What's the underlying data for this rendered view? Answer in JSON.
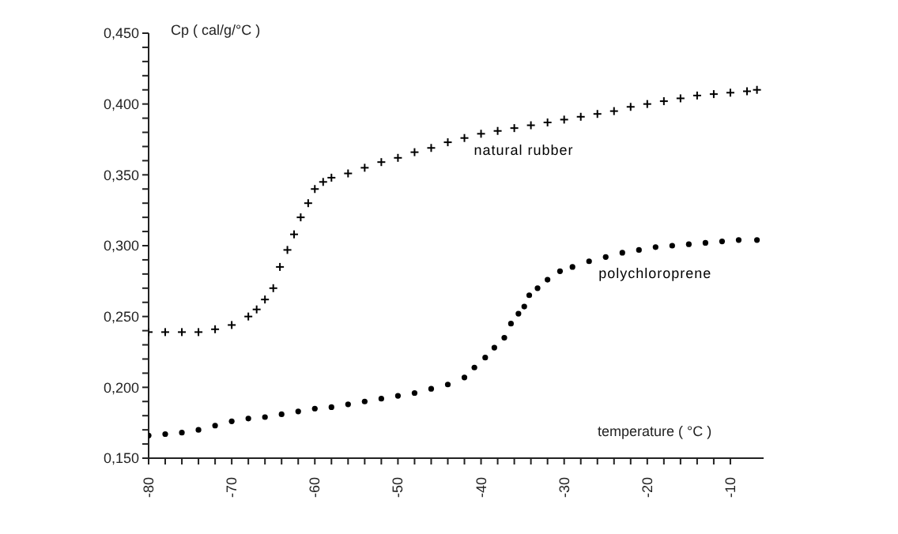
{
  "chart_data": {
    "type": "scatter",
    "xlabel": "temperature ( °C )",
    "ylabel": "Cp ( cal/g/°C )",
    "xlim": [
      -80,
      -6
    ],
    "xticks": [
      -80,
      {
        "value": -78,
        "label": null
      },
      {
        "value": -76,
        "label": null
      },
      {
        "value": -74,
        "label": null
      },
      {
        "value": -72,
        "label": null
      },
      -70,
      {
        "value": -68,
        "label": null
      },
      {
        "value": -66,
        "label": null
      },
      {
        "value": -64,
        "label": null
      },
      {
        "value": -62,
        "label": null
      },
      -60,
      {
        "value": -58,
        "label": null
      },
      {
        "value": -56,
        "label": null
      },
      {
        "value": -54,
        "label": null
      },
      {
        "value": -52,
        "label": null
      },
      -50,
      {
        "value": -48,
        "label": null
      },
      {
        "value": -46,
        "label": null
      },
      {
        "value": -44,
        "label": null
      },
      {
        "value": -42,
        "label": null
      },
      -40,
      {
        "value": -38,
        "label": null
      },
      {
        "value": -36,
        "label": null
      },
      {
        "value": -34,
        "label": null
      },
      {
        "value": -32,
        "label": null
      },
      -30,
      {
        "value": -28,
        "label": null
      },
      {
        "value": -26,
        "label": null
      },
      {
        "value": -24,
        "label": null
      },
      {
        "value": -22,
        "label": null
      },
      -20,
      {
        "value": -18,
        "label": null
      },
      {
        "value": -16,
        "label": null
      },
      {
        "value": -14,
        "label": null
      },
      {
        "value": -12,
        "label": null
      },
      -10
    ],
    "ylim": [
      0.15,
      0.45
    ],
    "yticks": [
      {
        "value": 0.15,
        "label": "0,150"
      },
      {
        "value": 0.16,
        "label": null
      },
      {
        "value": 0.17,
        "label": null
      },
      {
        "value": 0.18,
        "label": null
      },
      {
        "value": 0.19,
        "label": null
      },
      {
        "value": 0.2,
        "label": "0,200"
      },
      {
        "value": 0.21,
        "label": null
      },
      {
        "value": 0.22,
        "label": null
      },
      {
        "value": 0.23,
        "label": null
      },
      {
        "value": 0.24,
        "label": null
      },
      {
        "value": 0.25,
        "label": "0,250"
      },
      {
        "value": 0.26,
        "label": null
      },
      {
        "value": 0.27,
        "label": null
      },
      {
        "value": 0.28,
        "label": null
      },
      {
        "value": 0.29,
        "label": null
      },
      {
        "value": 0.3,
        "label": "0,300"
      },
      {
        "value": 0.31,
        "label": null
      },
      {
        "value": 0.32,
        "label": null
      },
      {
        "value": 0.33,
        "label": null
      },
      {
        "value": 0.34,
        "label": null
      },
      {
        "value": 0.35,
        "label": "0,350"
      },
      {
        "value": 0.36,
        "label": null
      },
      {
        "value": 0.37,
        "label": null
      },
      {
        "value": 0.38,
        "label": null
      },
      {
        "value": 0.39,
        "label": null
      },
      {
        "value": 0.4,
        "label": "0,400"
      },
      {
        "value": 0.41,
        "label": null
      },
      {
        "value": 0.42,
        "label": null
      },
      {
        "value": 0.43,
        "label": null
      },
      {
        "value": 0.44,
        "label": null
      },
      {
        "value": 0.45,
        "label": "0,450"
      }
    ],
    "grid": false,
    "series": [
      {
        "name": "natural rubber",
        "color": "#000000",
        "marker": "cross",
        "x": [
          -80,
          -78,
          -76,
          -74,
          -72,
          -70,
          -68,
          -67,
          -66,
          -65,
          -64.2,
          -63.3,
          -62.5,
          -61.7,
          -60.8,
          -60,
          -59,
          -58,
          -56,
          -54,
          -52,
          -50,
          -48,
          -46,
          -44,
          -42,
          -40,
          -38,
          -36,
          -34,
          -32,
          -30,
          -28,
          -26,
          -24,
          -22,
          -20,
          -18,
          -16,
          -14,
          -12,
          -10,
          -8,
          -6.8
        ],
        "values": [
          0.239,
          0.239,
          0.239,
          0.239,
          0.241,
          0.244,
          0.25,
          0.255,
          0.262,
          0.27,
          0.285,
          0.297,
          0.308,
          0.32,
          0.33,
          0.34,
          0.345,
          0.348,
          0.351,
          0.355,
          0.359,
          0.362,
          0.366,
          0.369,
          0.373,
          0.376,
          0.379,
          0.381,
          0.383,
          0.385,
          0.387,
          0.389,
          0.391,
          0.393,
          0.395,
          0.398,
          0.4,
          0.402,
          0.404,
          0.406,
          0.407,
          0.408,
          0.409,
          0.41
        ]
      },
      {
        "name": "polychloroprene",
        "color": "#000000",
        "marker": "circle",
        "x": [
          -80,
          -78,
          -76,
          -74,
          -72,
          -70,
          -68,
          -66,
          -64,
          -62,
          -60,
          -58,
          -56,
          -54,
          -52,
          -50,
          -48,
          -46,
          -44,
          -42,
          -40.8,
          -39.5,
          -38.4,
          -37.2,
          -36.4,
          -35.5,
          -34.8,
          -34.2,
          -33.2,
          -32,
          -30.5,
          -29,
          -27,
          -25,
          -23,
          -21,
          -19,
          -17,
          -15,
          -13,
          -11,
          -9,
          -6.8
        ],
        "values": [
          0.166,
          0.167,
          0.168,
          0.17,
          0.173,
          0.176,
          0.178,
          0.179,
          0.181,
          0.183,
          0.185,
          0.186,
          0.188,
          0.19,
          0.192,
          0.194,
          0.196,
          0.199,
          0.202,
          0.207,
          0.214,
          0.221,
          0.228,
          0.235,
          0.245,
          0.252,
          0.257,
          0.265,
          0.27,
          0.276,
          0.282,
          0.285,
          0.289,
          0.292,
          0.295,
          0.297,
          0.299,
          0.3,
          0.301,
          0.302,
          0.303,
          0.304,
          0.304
        ]
      }
    ]
  }
}
